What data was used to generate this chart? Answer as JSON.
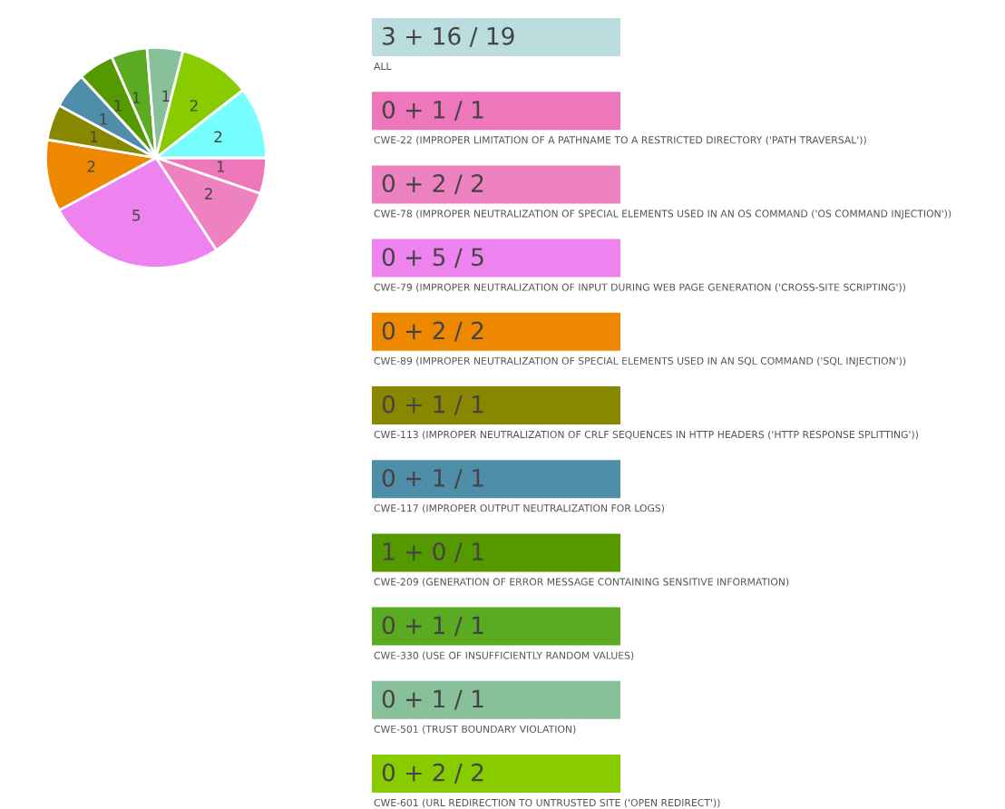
{
  "chart_data": [
    {
      "type": "pie",
      "categories": [
        null,
        null,
        null,
        null,
        null,
        null,
        null,
        null,
        null,
        null,
        null
      ],
      "values": [
        1,
        2,
        5,
        2,
        1,
        1,
        1,
        1,
        1,
        2,
        2
      ],
      "colors": [
        "#ee77bb",
        "#ee82c0",
        "#ee82ee",
        "#ee8800",
        "#888800",
        "#4e8ea8",
        "#559900",
        "#5aaa22",
        "#88c099",
        "#88cc00",
        "#77ffff"
      ],
      "data_labels": true
    },
    {
      "type": "other",
      "categories": [
        "ALL",
        "CWE-22 (IMPROPER LIMITATION OF A PATHNAME TO A RESTRICTED DIRECTORY ('PATH TRAVERSAL'))",
        "CWE-78 (IMPROPER NEUTRALIZATION OF SPECIAL ELEMENTS USED IN AN OS COMMAND ('OS COMMAND INJECTION'))",
        "CWE-79 (IMPROPER NEUTRALIZATION OF INPUT DURING WEB PAGE GENERATION ('CROSS-SITE SCRIPTING'))",
        "CWE-89 (IMPROPER NEUTRALIZATION OF SPECIAL ELEMENTS USED IN AN SQL COMMAND ('SQL INJECTION'))",
        "CWE-113 (IMPROPER NEUTRALIZATION OF CRLF SEQUENCES IN HTTP HEADERS ('HTTP RESPONSE SPLITTING'))",
        "CWE-117 (IMPROPER OUTPUT NEUTRALIZATION FOR LOGS)",
        "CWE-209 (GENERATION OF ERROR MESSAGE CONTAINING SENSITIVE INFORMATION)",
        "CWE-330 (USE OF INSUFFICIENTLY RANDOM VALUES)",
        "CWE-501 (TRUST BOUNDARY VIOLATION)",
        "CWE-601 (URL REDIRECTION TO UNTRUSTED SITE ('OPEN REDIRECT'))"
      ],
      "value_labels": [
        "3 + 16 / 19",
        "0 + 1 / 1",
        "0 + 2 / 2",
        "0 + 5 / 5",
        "0 + 2 / 2",
        "0 + 1 / 1",
        "0 + 1 / 1",
        "1 + 0 / 1",
        "0 + 1 / 1",
        "0 + 1 / 1",
        "0 + 2 / 2"
      ],
      "colors": [
        "#bbdddd",
        "#ee77bb",
        "#ee82c0",
        "#ee82ee",
        "#ee8800",
        "#888800",
        "#4e8ea8",
        "#559900",
        "#5aaa22",
        "#88c099",
        "#88cc00"
      ]
    }
  ]
}
